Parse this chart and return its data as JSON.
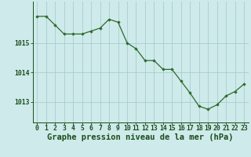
{
  "x": [
    0,
    1,
    2,
    3,
    4,
    5,
    6,
    7,
    8,
    9,
    10,
    11,
    12,
    13,
    14,
    15,
    16,
    17,
    18,
    19,
    20,
    21,
    22,
    23
  ],
  "y": [
    1015.9,
    1015.9,
    1015.6,
    1015.3,
    1015.3,
    1015.3,
    1015.4,
    1015.5,
    1015.8,
    1015.7,
    1015.0,
    1014.8,
    1014.4,
    1014.4,
    1014.1,
    1014.1,
    1013.7,
    1013.3,
    1012.85,
    1012.75,
    1012.9,
    1013.2,
    1013.35,
    1013.6
  ],
  "line_color": "#2d6a2d",
  "marker_color": "#2d6a2d",
  "bg_color": "#ceeaea",
  "grid_color": "#a0c8c8",
  "title": "Graphe pression niveau de la mer (hPa)",
  "xlabel_ticks": [
    0,
    1,
    2,
    3,
    4,
    5,
    6,
    7,
    8,
    9,
    10,
    11,
    12,
    13,
    14,
    15,
    16,
    17,
    18,
    19,
    20,
    21,
    22,
    23
  ],
  "yticks": [
    1013,
    1014,
    1015
  ],
  "ylim": [
    1012.3,
    1016.4
  ],
  "xlim": [
    -0.5,
    23.5
  ],
  "title_fontsize": 7.5,
  "tick_fontsize": 5.8,
  "title_color": "#1a4d1a",
  "tick_color": "#1a4d1a"
}
